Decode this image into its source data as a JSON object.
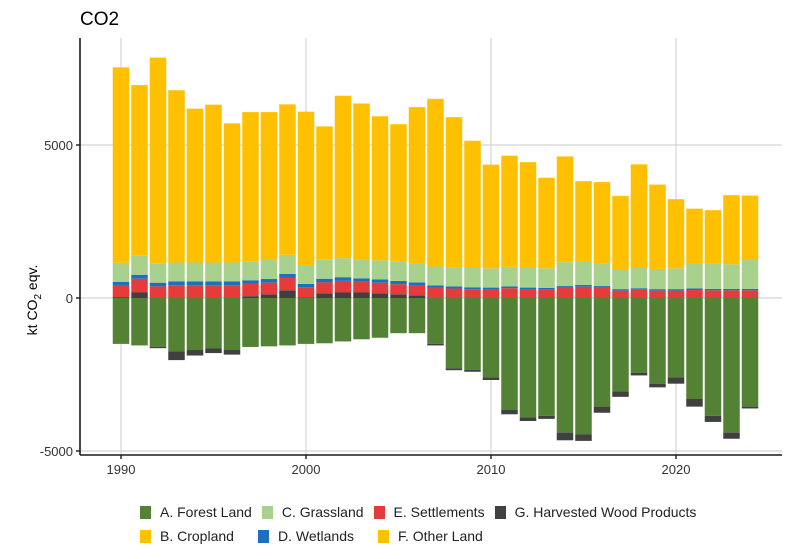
{
  "chart_data": {
    "type": "bar",
    "stacked": true,
    "title": "CO2",
    "xlabel": "",
    "ylabel": "kt CO2 eqv.",
    "ylim": [
      -5100,
      8000
    ],
    "yticks": [
      -5000,
      0,
      5000
    ],
    "ytick_labels": [
      "-5000",
      "0",
      "5000"
    ],
    "xticks": [
      1990,
      2000,
      2010,
      2020
    ],
    "xtick_labels": [
      "1990",
      "2000",
      "2010",
      "2020"
    ],
    "grid": true,
    "legend_position": "bottom",
    "categories": [
      1990,
      1991,
      1992,
      1993,
      1994,
      1995,
      1996,
      1997,
      1998,
      1999,
      2000,
      2001,
      2002,
      2003,
      2004,
      2005,
      2006,
      2007,
      2008,
      2009,
      2010,
      2011,
      2012,
      2013,
      2014,
      2015,
      2016,
      2017,
      2018,
      2019,
      2020,
      2021,
      2022,
      2023,
      2024
    ],
    "series": [
      {
        "name": "A. Forest Land",
        "color": "#548235",
        "values": [
          -1500,
          -1550,
          -1600,
          -1750,
          -1700,
          -1650,
          -1700,
          -1600,
          -1580,
          -1550,
          -1500,
          -1480,
          -1420,
          -1350,
          -1300,
          -1150,
          -1150,
          -1500,
          -2300,
          -2350,
          -2600,
          -3650,
          -3900,
          -3850,
          -4400,
          -4450,
          -3550,
          -3050,
          -2450,
          -2800,
          -2600,
          -3300,
          -3850,
          -4400,
          -3550
        ]
      },
      {
        "name": "G. Harvested Wood Products",
        "color": "#404040",
        "values": [
          30,
          180,
          -40,
          -280,
          -180,
          -150,
          -150,
          60,
          120,
          250,
          20,
          150,
          180,
          180,
          150,
          120,
          90,
          -50,
          -60,
          -60,
          -80,
          -150,
          -120,
          -100,
          -250,
          -220,
          -200,
          -180,
          -80,
          -120,
          -200,
          -250,
          -200,
          -200,
          -60
        ]
      },
      {
        "name": "E. Settlements",
        "color": "#e63b3b",
        "values": [
          380,
          450,
          380,
          420,
          420,
          420,
          420,
          400,
          380,
          420,
          330,
          360,
          380,
          350,
          350,
          330,
          320,
          330,
          310,
          290,
          280,
          320,
          280,
          270,
          330,
          370,
          340,
          240,
          270,
          240,
          240,
          260,
          250,
          250,
          250
        ]
      },
      {
        "name": "D. Wetlands",
        "color": "#1f6fbf",
        "values": [
          120,
          130,
          120,
          120,
          120,
          120,
          120,
          120,
          120,
          120,
          110,
          120,
          120,
          110,
          110,
          110,
          100,
          80,
          70,
          60,
          60,
          60,
          60,
          60,
          60,
          60,
          50,
          50,
          50,
          50,
          50,
          50,
          50,
          50,
          50
        ]
      },
      {
        "name": "C. Grassland",
        "color": "#a9d18e",
        "values": [
          620,
          620,
          620,
          620,
          620,
          620,
          620,
          620,
          620,
          620,
          620,
          620,
          620,
          620,
          620,
          620,
          620,
          620,
          620,
          630,
          630,
          640,
          640,
          640,
          780,
          780,
          740,
          640,
          660,
          660,
          680,
          820,
          840,
          800,
          940
        ]
      },
      {
        "name": "B. Cropland",
        "color": "#ffc000",
        "values": [
          6380,
          5570,
          6730,
          5620,
          5020,
          5150,
          4540,
          4870,
          4830,
          4910,
          5000,
          4350,
          5300,
          5090,
          4700,
          4490,
          5100,
          5470,
          4900,
          4150,
          3380,
          3620,
          3450,
          2950,
          3450,
          2600,
          2650,
          2400,
          3380,
          2750,
          2250,
          1780,
          1720,
          2250,
          2100
        ]
      },
      {
        "name": "F. Other Land",
        "color": "#ffc000",
        "values": [
          10,
          10,
          10,
          10,
          10,
          10,
          10,
          10,
          10,
          10,
          10,
          10,
          10,
          10,
          10,
          10,
          10,
          10,
          10,
          10,
          10,
          10,
          10,
          10,
          10,
          10,
          10,
          10,
          10,
          10,
          10,
          10,
          10,
          10,
          10
        ]
      }
    ]
  },
  "legend": {
    "rows": [
      [
        {
          "label": "A. Forest Land",
          "color": "#548235"
        },
        {
          "label": "C. Grassland",
          "color": "#a9d18e"
        },
        {
          "label": "E. Settlements",
          "color": "#e63b3b"
        },
        {
          "label": "G. Harvested Wood Products",
          "color": "#404040"
        }
      ],
      [
        {
          "label": "B. Cropland",
          "color": "#ffc000"
        },
        {
          "label": "D. Wetlands",
          "color": "#1f6fbf"
        },
        {
          "label": "F. Other Land",
          "color": "#ffc000"
        }
      ]
    ]
  }
}
